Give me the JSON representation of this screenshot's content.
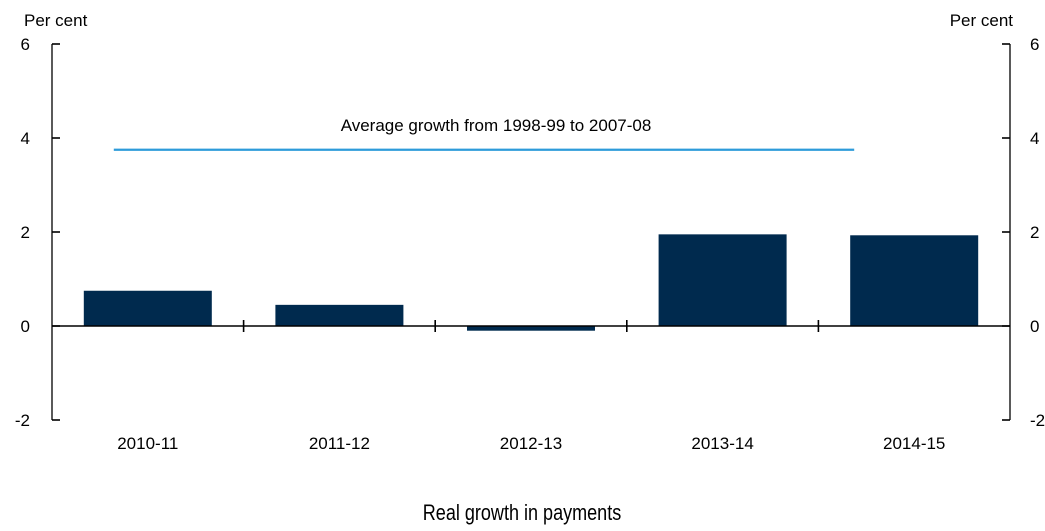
{
  "chart_data": {
    "type": "bar",
    "categories": [
      "2010-11",
      "2011-12",
      "2012-13",
      "2013-14",
      "2014-15"
    ],
    "values": [
      0.75,
      0.45,
      -0.1,
      1.95,
      1.93
    ],
    "ylim": [
      -2,
      6
    ],
    "yticks": [
      "-2",
      "0",
      "2",
      "4",
      "6"
    ],
    "left_axis_unit": "Per cent",
    "right_axis_unit": "Per cent",
    "reference_line": {
      "label": "Average growth from 1998-99 to 2007-08",
      "value": 3.75,
      "from_category": 0,
      "to_category": 4
    },
    "caption": "Real growth in payments",
    "grid": false,
    "legend": "none",
    "colors": {
      "bar": "#002A4E",
      "reference_line": "#2E9BDA"
    }
  }
}
